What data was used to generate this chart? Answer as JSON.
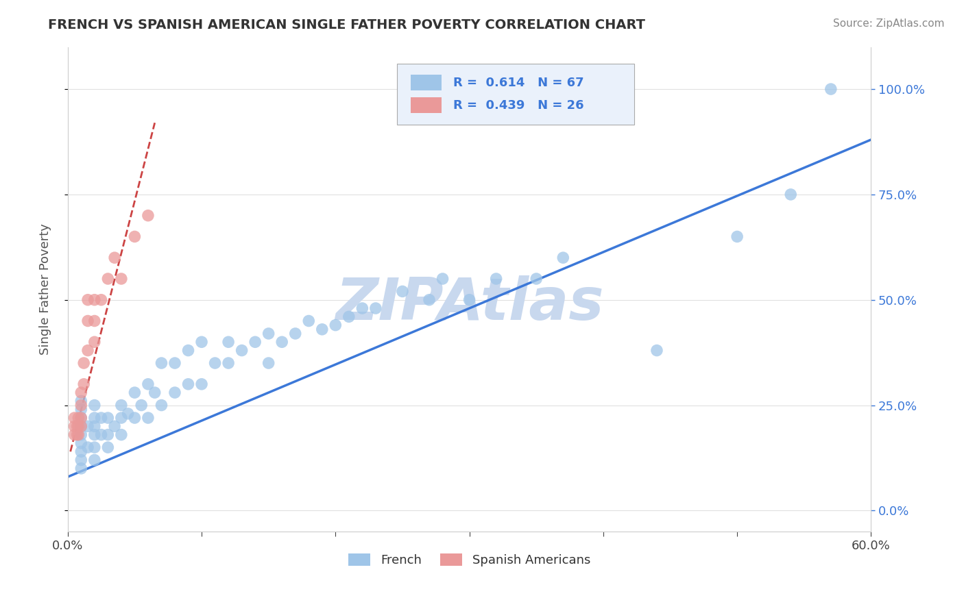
{
  "title": "FRENCH VS SPANISH AMERICAN SINGLE FATHER POVERTY CORRELATION CHART",
  "source": "Source: ZipAtlas.com",
  "ylabel": "Single Father Poverty",
  "yticks": [
    "0.0%",
    "25.0%",
    "50.0%",
    "75.0%",
    "100.0%"
  ],
  "ytick_vals": [
    0.0,
    0.25,
    0.5,
    0.75,
    1.0
  ],
  "xlim": [
    0,
    0.6
  ],
  "ylim": [
    -0.05,
    1.1
  ],
  "french_R": 0.614,
  "french_N": 67,
  "spanish_R": 0.439,
  "spanish_N": 26,
  "french_color": "#9fc5e8",
  "spanish_color": "#ea9999",
  "french_line_color": "#3c78d8",
  "spanish_line_color": "#cc4444",
  "watermark": "ZIPAtlas",
  "watermark_color": "#c8d8ee",
  "french_x": [
    0.01,
    0.01,
    0.01,
    0.01,
    0.01,
    0.01,
    0.01,
    0.01,
    0.01,
    0.015,
    0.015,
    0.02,
    0.02,
    0.02,
    0.02,
    0.02,
    0.02,
    0.025,
    0.025,
    0.03,
    0.03,
    0.03,
    0.035,
    0.04,
    0.04,
    0.04,
    0.045,
    0.05,
    0.05,
    0.055,
    0.06,
    0.06,
    0.065,
    0.07,
    0.07,
    0.08,
    0.08,
    0.09,
    0.09,
    0.1,
    0.1,
    0.11,
    0.12,
    0.12,
    0.13,
    0.14,
    0.15,
    0.15,
    0.16,
    0.17,
    0.18,
    0.19,
    0.2,
    0.21,
    0.22,
    0.23,
    0.25,
    0.27,
    0.28,
    0.3,
    0.32,
    0.35,
    0.37,
    0.44,
    0.5,
    0.54,
    0.57
  ],
  "french_y": [
    0.1,
    0.12,
    0.14,
    0.16,
    0.18,
    0.2,
    0.22,
    0.24,
    0.26,
    0.15,
    0.2,
    0.12,
    0.15,
    0.18,
    0.2,
    0.22,
    0.25,
    0.18,
    0.22,
    0.15,
    0.18,
    0.22,
    0.2,
    0.18,
    0.22,
    0.25,
    0.23,
    0.22,
    0.28,
    0.25,
    0.22,
    0.3,
    0.28,
    0.25,
    0.35,
    0.28,
    0.35,
    0.3,
    0.38,
    0.3,
    0.4,
    0.35,
    0.35,
    0.4,
    0.38,
    0.4,
    0.35,
    0.42,
    0.4,
    0.42,
    0.45,
    0.43,
    0.44,
    0.46,
    0.48,
    0.48,
    0.52,
    0.5,
    0.55,
    0.5,
    0.55,
    0.55,
    0.6,
    0.38,
    0.65,
    0.75,
    1.0
  ],
  "spanish_x": [
    0.005,
    0.005,
    0.005,
    0.007,
    0.007,
    0.008,
    0.008,
    0.008,
    0.01,
    0.01,
    0.01,
    0.01,
    0.012,
    0.012,
    0.015,
    0.015,
    0.015,
    0.02,
    0.02,
    0.02,
    0.025,
    0.03,
    0.035,
    0.04,
    0.05,
    0.06
  ],
  "spanish_y": [
    0.18,
    0.2,
    0.22,
    0.18,
    0.2,
    0.18,
    0.2,
    0.22,
    0.2,
    0.22,
    0.25,
    0.28,
    0.3,
    0.35,
    0.38,
    0.45,
    0.5,
    0.4,
    0.45,
    0.5,
    0.5,
    0.55,
    0.6,
    0.55,
    0.65,
    0.7
  ],
  "french_line_x": [
    0.0,
    0.6
  ],
  "french_line_y": [
    0.08,
    0.88
  ],
  "spanish_line_x": [
    0.002,
    0.065
  ],
  "spanish_line_y": [
    0.14,
    0.92
  ]
}
